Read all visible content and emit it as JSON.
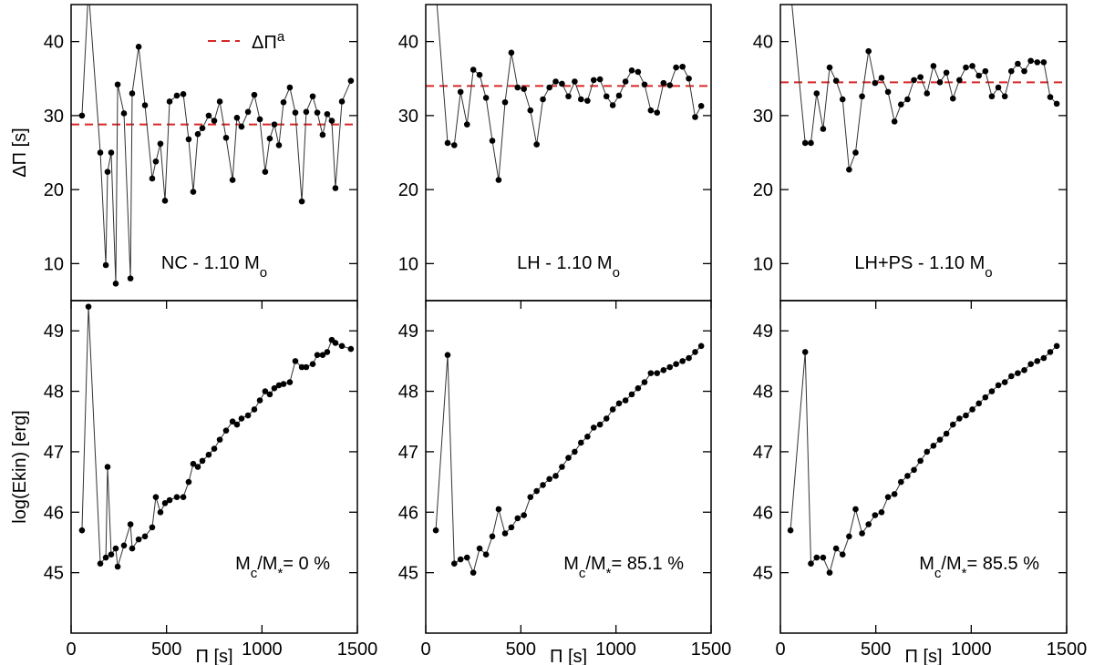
{
  "chart_data": [
    {
      "type": "line",
      "ylabel": "ΔΠ [s]",
      "xlim": [
        0,
        1500
      ],
      "ylim": [
        5,
        45
      ],
      "yticks": [
        10,
        20,
        30,
        40
      ],
      "x": [
        57,
        91,
        153,
        182,
        191,
        210,
        234,
        244,
        277,
        311,
        320,
        354,
        387,
        425,
        444,
        468,
        492,
        516,
        554,
        588,
        616,
        640,
        664,
        688,
        721,
        750,
        779,
        812,
        846,
        869,
        893,
        927,
        960,
        989,
        1017,
        1041,
        1065,
        1089,
        1113,
        1146,
        1175,
        1209,
        1232,
        1266,
        1290,
        1318,
        1342,
        1366,
        1385,
        1419,
        1466
      ],
      "series": [
        {
          "color": "#000000",
          "values": [
            30,
            47,
            25,
            9.8,
            22.4,
            25,
            7.3,
            34.2,
            30.3,
            8,
            33,
            39.3,
            31.4,
            21.5,
            23.8,
            26.2,
            18.5,
            31.9,
            32.7,
            32.9,
            26.8,
            19.7,
            27.5,
            28.3,
            30,
            29.3,
            31.9,
            27,
            21.3,
            29.7,
            28.5,
            30.5,
            32.8,
            29.5,
            22.4,
            26.9,
            28.8,
            26,
            31.8,
            33.8,
            30.4,
            18.4,
            30.5,
            32.6,
            30.4,
            27.4,
            30.2,
            29.3,
            20.2,
            31.9,
            34.7
          ]
        }
      ],
      "reference": {
        "name": [
          {
            "text": "ΔΠ"
          },
          {
            "text": "a",
            "shift": "super"
          }
        ],
        "value": 28.8,
        "color": "#d62728"
      },
      "annotation": [
        {
          "text": "NC - 1.10 M"
        },
        {
          "text": "o",
          "shift": "sub"
        }
      ]
    },
    {
      "type": "line",
      "xlim": [
        0,
        1500
      ],
      "ylim": [
        5,
        45
      ],
      "yticks": [
        10,
        20,
        30,
        40
      ],
      "x": [
        53,
        115,
        150,
        183,
        217,
        250,
        283,
        317,
        350,
        383,
        417,
        450,
        483,
        516,
        550,
        583,
        616,
        650,
        683,
        716,
        750,
        783,
        816,
        850,
        883,
        916,
        950,
        983,
        1016,
        1050,
        1083,
        1116,
        1150,
        1183,
        1216,
        1250,
        1283,
        1316,
        1350,
        1383,
        1416,
        1448
      ],
      "series": [
        {
          "color": "#000000",
          "values": [
            47,
            26.3,
            26,
            33.2,
            28.8,
            36.2,
            35.5,
            32.4,
            26.6,
            21.3,
            31.8,
            38.5,
            33.8,
            33.6,
            30.7,
            26.1,
            32.2,
            33.8,
            34.6,
            34.3,
            32.6,
            34.6,
            32.2,
            32,
            34.8,
            34.9,
            32.6,
            31.4,
            32.7,
            34.6,
            36.1,
            35.9,
            34.2,
            30.7,
            30.4,
            34.4,
            34.1,
            36.5,
            36.6,
            35,
            29.8,
            31.3
          ]
        }
      ],
      "reference": {
        "value": 34,
        "color": "#d62728"
      },
      "annotation": [
        {
          "text": "LH - 1.10 M"
        },
        {
          "text": "o",
          "shift": "sub"
        }
      ]
    },
    {
      "type": "line",
      "xlim": [
        0,
        1500
      ],
      "ylim": [
        5,
        45
      ],
      "yticks": [
        10,
        20,
        30,
        40
      ],
      "x": [
        53,
        130,
        160,
        190,
        224,
        258,
        292,
        326,
        360,
        394,
        428,
        462,
        496,
        530,
        564,
        598,
        632,
        666,
        700,
        734,
        768,
        802,
        836,
        870,
        904,
        938,
        972,
        1006,
        1040,
        1074,
        1108,
        1142,
        1176,
        1210,
        1244,
        1278,
        1312,
        1346,
        1380,
        1414,
        1448
      ],
      "series": [
        {
          "color": "#000000",
          "values": [
            47,
            26.3,
            26.3,
            33,
            28.2,
            36.5,
            34.7,
            32.2,
            22.7,
            25,
            32.6,
            38.7,
            34.4,
            35.1,
            33.2,
            29.2,
            31.5,
            32.2,
            34.8,
            35.2,
            33,
            36.7,
            34.5,
            35.8,
            32.3,
            34.8,
            36.5,
            36.7,
            35.4,
            36,
            32.6,
            33.8,
            32.6,
            36,
            37,
            36,
            37.4,
            37.2,
            37.2,
            32.5,
            31.6
          ]
        }
      ],
      "reference": {
        "value": 34.5,
        "color": "#d62728"
      },
      "annotation": [
        {
          "text": "LH+PS - 1.10 M"
        },
        {
          "text": "o",
          "shift": "sub"
        }
      ]
    },
    {
      "type": "line",
      "ylabel": "log(Ekin) [erg]",
      "xlabel": "Π [s]",
      "xlim": [
        0,
        1500
      ],
      "xticks": [
        0,
        500,
        1000,
        1500
      ],
      "ylim": [
        44,
        49.5
      ],
      "yticks": [
        45,
        46,
        47,
        48,
        49
      ],
      "x": [
        57,
        91,
        153,
        182,
        191,
        210,
        234,
        244,
        277,
        311,
        320,
        354,
        387,
        425,
        444,
        468,
        492,
        516,
        554,
        588,
        616,
        640,
        664,
        688,
        721,
        750,
        779,
        812,
        846,
        869,
        893,
        927,
        960,
        989,
        1017,
        1041,
        1065,
        1089,
        1113,
        1146,
        1175,
        1209,
        1232,
        1266,
        1290,
        1318,
        1342,
        1366,
        1385,
        1419,
        1466
      ],
      "series": [
        {
          "color": "#000000",
          "values": [
            45.7,
            49.4,
            45.15,
            45.25,
            46.75,
            45.3,
            45.4,
            45.1,
            45.45,
            45.8,
            45.4,
            45.55,
            45.6,
            45.75,
            46.25,
            46.0,
            46.15,
            46.2,
            46.25,
            46.25,
            46.5,
            46.8,
            46.75,
            46.85,
            46.95,
            47.05,
            47.2,
            47.35,
            47.5,
            47.45,
            47.55,
            47.6,
            47.7,
            47.85,
            48.0,
            47.95,
            48.05,
            48.1,
            48.12,
            48.15,
            48.5,
            48.4,
            48.4,
            48.45,
            48.6,
            48.6,
            48.65,
            48.85,
            48.8,
            48.75,
            48.7
          ]
        }
      ],
      "annotation": [
        {
          "text": "M"
        },
        {
          "text": "c",
          "shift": "sub"
        },
        {
          "text": "/M"
        },
        {
          "text": "*",
          "shift": "sub"
        },
        {
          "text": "= 0 %"
        }
      ]
    },
    {
      "type": "line",
      "xlabel": "Π [s]",
      "xlim": [
        0,
        1500
      ],
      "xticks": [
        0,
        500,
        1000,
        1500
      ],
      "ylim": [
        44,
        49.5
      ],
      "yticks": [
        45,
        46,
        47,
        48,
        49
      ],
      "x": [
        53,
        115,
        150,
        183,
        217,
        250,
        283,
        317,
        350,
        383,
        417,
        450,
        483,
        516,
        550,
        583,
        616,
        650,
        683,
        716,
        750,
        783,
        816,
        850,
        883,
        916,
        950,
        983,
        1016,
        1050,
        1083,
        1116,
        1150,
        1183,
        1216,
        1250,
        1283,
        1316,
        1350,
        1383,
        1416,
        1448
      ],
      "series": [
        {
          "color": "#000000",
          "values": [
            45.7,
            48.6,
            45.15,
            45.22,
            45.25,
            45.0,
            45.4,
            45.3,
            45.6,
            46.05,
            45.65,
            45.75,
            45.9,
            45.95,
            46.25,
            46.35,
            46.45,
            46.55,
            46.6,
            46.75,
            46.9,
            47.0,
            47.15,
            47.25,
            47.4,
            47.45,
            47.55,
            47.7,
            47.8,
            47.85,
            47.95,
            48.05,
            48.15,
            48.3,
            48.3,
            48.35,
            48.4,
            48.45,
            48.5,
            48.55,
            48.65,
            48.75
          ]
        }
      ],
      "annotation": [
        {
          "text": "M"
        },
        {
          "text": "c",
          "shift": "sub"
        },
        {
          "text": "/M"
        },
        {
          "text": "*",
          "shift": "sub"
        },
        {
          "text": "= 85.1 %"
        }
      ]
    },
    {
      "type": "line",
      "xlabel": "Π [s]",
      "xlim": [
        0,
        1500
      ],
      "xticks": [
        0,
        500,
        1000,
        1500
      ],
      "ylim": [
        44,
        49.5
      ],
      "yticks": [
        45,
        46,
        47,
        48,
        49
      ],
      "x": [
        53,
        130,
        160,
        190,
        224,
        258,
        292,
        326,
        360,
        394,
        428,
        462,
        496,
        530,
        564,
        598,
        632,
        666,
        700,
        734,
        768,
        802,
        836,
        870,
        904,
        938,
        972,
        1006,
        1040,
        1074,
        1108,
        1142,
        1176,
        1210,
        1244,
        1278,
        1312,
        1346,
        1380,
        1414,
        1448
      ],
      "series": [
        {
          "color": "#000000",
          "values": [
            45.7,
            48.65,
            45.15,
            45.25,
            45.25,
            45.0,
            45.4,
            45.3,
            45.6,
            46.05,
            45.65,
            45.8,
            45.95,
            46.0,
            46.25,
            46.3,
            46.5,
            46.6,
            46.7,
            46.85,
            47.0,
            47.1,
            47.2,
            47.3,
            47.45,
            47.55,
            47.6,
            47.7,
            47.8,
            47.9,
            48.0,
            48.1,
            48.15,
            48.25,
            48.3,
            48.35,
            48.45,
            48.5,
            48.55,
            48.65,
            48.75
          ]
        }
      ],
      "annotation": [
        {
          "text": "M"
        },
        {
          "text": "c",
          "shift": "sub"
        },
        {
          "text": "/M"
        },
        {
          "text": "*",
          "shift": "sub"
        },
        {
          "text": "= 85.5 %"
        }
      ]
    }
  ]
}
